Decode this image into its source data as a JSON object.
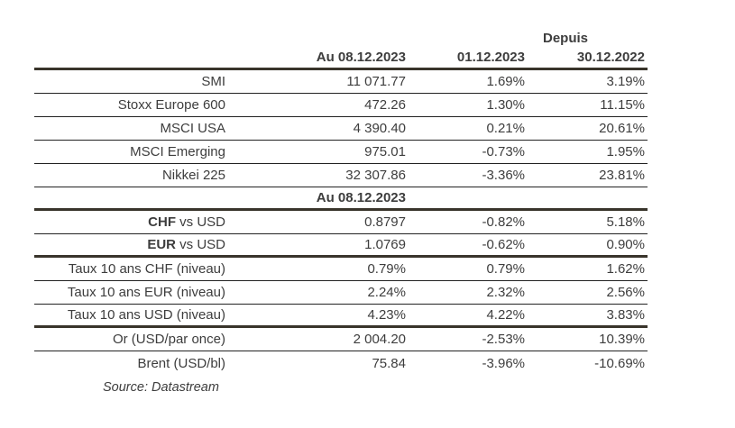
{
  "chart_data": {
    "type": "table",
    "header_group_label": "Depuis",
    "columns": [
      "Au 08.12.2023",
      "01.12.2023",
      "30.12.2022"
    ],
    "rows": [
      {
        "type": "data",
        "bold": "",
        "label": "SMI",
        "values": [
          "11 071.77",
          "1.69%",
          "3.19%"
        ],
        "divider_after": "thin"
      },
      {
        "type": "data",
        "bold": "",
        "label": "Stoxx Europe 600",
        "values": [
          "472.26",
          "1.30%",
          "11.15%"
        ],
        "divider_after": "thin"
      },
      {
        "type": "data",
        "bold": "",
        "label": "MSCI USA",
        "values": [
          "4 390.40",
          "0.21%",
          "20.61%"
        ],
        "divider_after": "thin"
      },
      {
        "type": "data",
        "bold": "",
        "label": "MSCI Emerging",
        "values": [
          "975.01",
          "-0.73%",
          "1.95%"
        ],
        "divider_after": "thin"
      },
      {
        "type": "data",
        "bold": "",
        "label": "Nikkei 225",
        "values": [
          "32 307.86",
          "-3.36%",
          "23.81%"
        ],
        "divider_after": "thin"
      },
      {
        "type": "subheader",
        "subheader": "Au 08.12.2023",
        "divider_after": "thick"
      },
      {
        "type": "data",
        "bold": "CHF",
        "label": " vs USD",
        "values": [
          "0.8797",
          "-0.82%",
          "5.18%"
        ],
        "divider_after": "thin"
      },
      {
        "type": "data",
        "bold": "EUR",
        "label": " vs USD",
        "values": [
          "1.0769",
          "-0.62%",
          "0.90%"
        ],
        "divider_after": "thick"
      },
      {
        "type": "data",
        "bold": "",
        "label": "Taux 10 ans CHF (niveau)",
        "values": [
          "0.79%",
          "0.79%",
          "1.62%"
        ],
        "divider_after": "thin"
      },
      {
        "type": "data",
        "bold": "",
        "label": "Taux 10 ans EUR (niveau)",
        "values": [
          "2.24%",
          "2.32%",
          "2.56%"
        ],
        "divider_after": "thin"
      },
      {
        "type": "data",
        "bold": "",
        "label": "Taux 10 ans USD (niveau)",
        "values": [
          "4.23%",
          "4.22%",
          "3.83%"
        ],
        "divider_after": "thick"
      },
      {
        "type": "data",
        "bold": "",
        "label": "Or (USD/par once)",
        "values": [
          "2 004.20",
          "-2.53%",
          "10.39%"
        ],
        "divider_after": "thin"
      },
      {
        "type": "data",
        "bold": "",
        "label": "Brent (USD/bl)",
        "values": [
          "75.84",
          "-3.96%",
          "-10.69%"
        ],
        "divider_after": "none"
      }
    ],
    "source_note": "Source: Datastream"
  },
  "colors": {
    "text": "#3d3d3d",
    "thin_line": "#222222",
    "thick_line": "#39342b",
    "background": "#ffffff"
  }
}
